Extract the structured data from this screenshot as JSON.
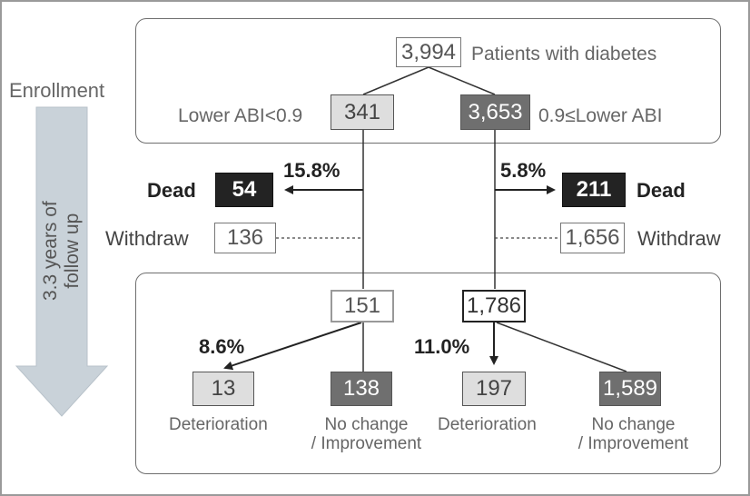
{
  "enrollment_label": "Enrollment",
  "follow_up_label_line1": "3.3 years of",
  "follow_up_label_line2": "follow up",
  "root": {
    "value": "3,994",
    "label": "Patients with diabetes"
  },
  "left_branch": {
    "group_label": "Lower ABI<0.9",
    "enrolled": "341",
    "dead_pct": "15.8%",
    "dead_label": "Dead",
    "dead": "54",
    "withdraw_label": "Withdraw",
    "withdraw": "136",
    "followed": "151",
    "deterioration_pct": "8.6%",
    "deterioration": "13",
    "deterioration_label": "Deterioration",
    "no_change": "138",
    "no_change_label_line1": "No change",
    "no_change_label_line2": "/ Improvement"
  },
  "right_branch": {
    "group_label": "0.9≤Lower ABI",
    "enrolled": "3,653",
    "dead_pct": "5.8%",
    "dead_label": "Dead",
    "dead": "211",
    "withdraw_label": "Withdraw",
    "withdraw": "1,656",
    "followed": "1,786",
    "deterioration_pct": "11.0%",
    "deterioration": "197",
    "deterioration_label": "Deterioration",
    "no_change": "1,589",
    "no_change_label_line1": "No change",
    "no_change_label_line2": "/ Improvement"
  },
  "colors": {
    "line": "#333333",
    "arrow_fill": "#c9d2d9",
    "node_light": "#dedede",
    "node_mid": "#6f6f6f",
    "node_dark": "#232323"
  }
}
